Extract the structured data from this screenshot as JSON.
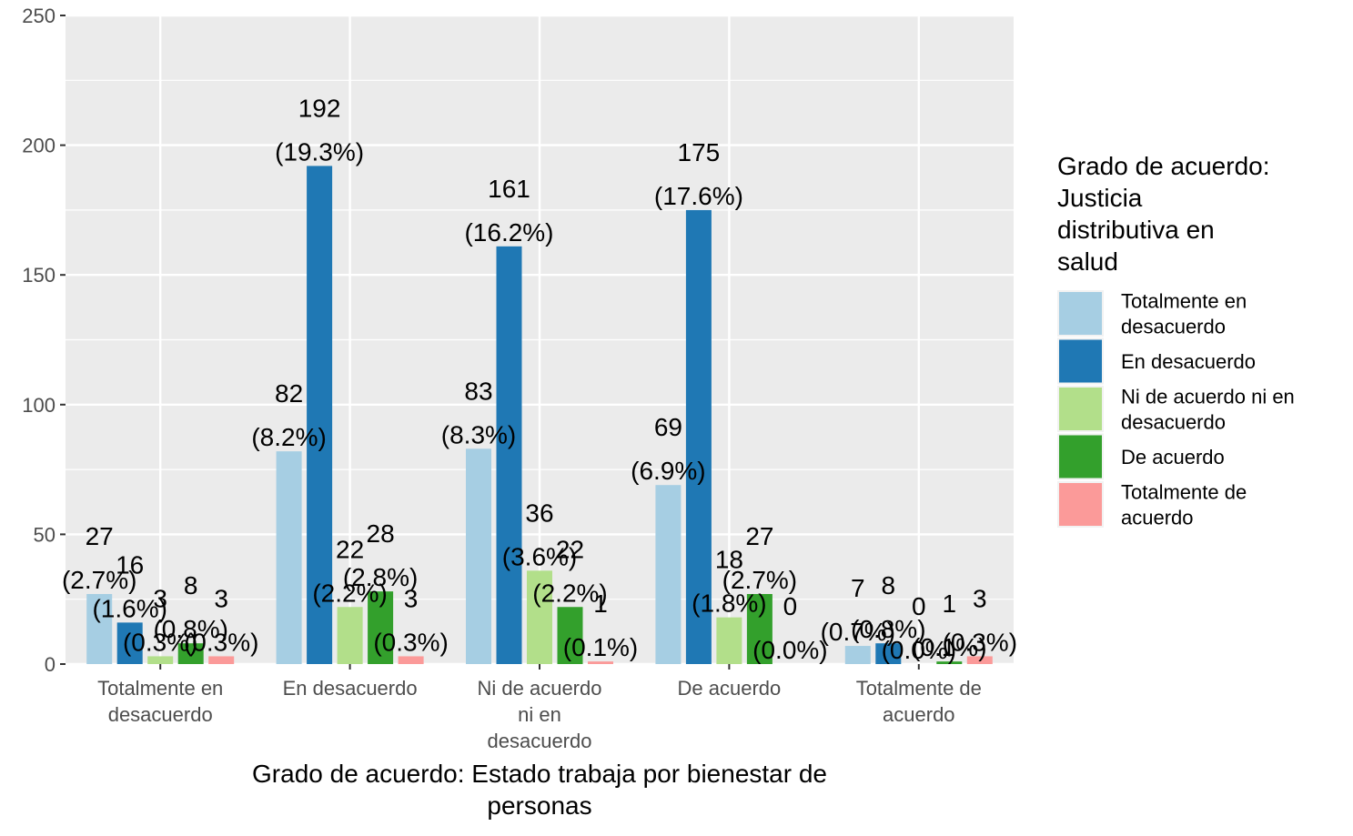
{
  "chart_data": {
    "type": "bar",
    "xlabel": "Grado de acuerdo: Estado trabaja por bienestar de personas",
    "ylabel": "",
    "ylim": [
      0,
      250
    ],
    "yticks": [
      0,
      50,
      100,
      150,
      200,
      250
    ],
    "categories": [
      "Totalmente en desacuerdo",
      "En desacuerdo",
      "Ni de acuerdo ni en desacuerdo",
      "De acuerdo",
      "Totalmente de acuerdo"
    ],
    "legend": {
      "title": "Grado de acuerdo: Justicia distributiva en salud",
      "position": "right"
    },
    "series": [
      {
        "name": "Totalmente en desacuerdo",
        "color": "#a6cee3",
        "values": [
          27,
          82,
          83,
          69,
          7
        ],
        "labels": [
          "(2.7%)",
          "(8.2%)",
          "(8.3%)",
          "(6.9%)",
          "(0.7%)"
        ]
      },
      {
        "name": "En desacuerdo",
        "color": "#1f78b4",
        "values": [
          16,
          192,
          161,
          175,
          8
        ],
        "labels": [
          "(1.6%)",
          "(19.3%)",
          "(16.2%)",
          "(17.6%)",
          "(0.8%)"
        ]
      },
      {
        "name": "Ni de acuerdo ni en desacuerdo",
        "color": "#b2df8a",
        "values": [
          3,
          22,
          36,
          18,
          0
        ],
        "labels": [
          "(0.3%)",
          "(2.2%)",
          "(3.6%)",
          "(1.8%)",
          "(0.0%)"
        ]
      },
      {
        "name": "De acuerdo",
        "color": "#33a02c",
        "values": [
          8,
          28,
          22,
          27,
          1
        ],
        "labels": [
          "(0.8%)",
          "(2.8%)",
          "(2.2%)",
          "(2.7%)",
          "(0.1%)"
        ]
      },
      {
        "name": "Totalmente de acuerdo",
        "color": "#fb9a99",
        "values": [
          3,
          3,
          1,
          0,
          3
        ],
        "labels": [
          "(0.3%)",
          "(0.3%)",
          "(0.1%)",
          "(0.0%)",
          "(0.3%)"
        ]
      }
    ],
    "grid": true,
    "panel_background": "#ebebeb",
    "grid_color": "#ffffff"
  }
}
